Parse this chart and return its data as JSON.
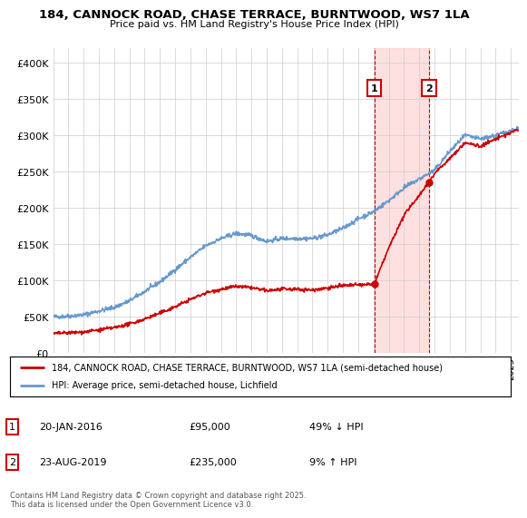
{
  "title": "184, CANNOCK ROAD, CHASE TERRACE, BURNTWOOD, WS7 1LA",
  "subtitle": "Price paid vs. HM Land Registry's House Price Index (HPI)",
  "ylabel_ticks": [
    "£0",
    "£50K",
    "£100K",
    "£150K",
    "£200K",
    "£250K",
    "£300K",
    "£350K",
    "£400K"
  ],
  "ytick_values": [
    0,
    50000,
    100000,
    150000,
    200000,
    250000,
    300000,
    350000,
    400000
  ],
  "ylim": [
    0,
    420000
  ],
  "xlim_start": 1995.0,
  "xlim_end": 2025.5,
  "transaction1": {
    "label": "1",
    "date": "20-JAN-2016",
    "price": 95000,
    "hpi_pct": "49% ↓ HPI",
    "x": 2016.05
  },
  "transaction2": {
    "label": "2",
    "date": "23-AUG-2019",
    "price": 235000,
    "hpi_pct": "9% ↑ HPI",
    "x": 2019.64
  },
  "legend_property": "184, CANNOCK ROAD, CHASE TERRACE, BURNTWOOD, WS7 1LA (semi-detached house)",
  "legend_hpi": "HPI: Average price, semi-detached house, Lichfield",
  "footer": "Contains HM Land Registry data © Crown copyright and database right 2025.\nThis data is licensed under the Open Government Licence v3.0.",
  "color_property": "#cc0000",
  "color_hpi": "#6699cc",
  "color_highlight": "#ffcccc",
  "background_color": "#ffffff",
  "grid_color": "#cccccc",
  "hpi_anchors_x": [
    1995,
    1996,
    1997,
    1998,
    1999,
    2000,
    2001,
    2002,
    2003,
    2004,
    2005,
    2006,
    2007,
    2008,
    2009,
    2010,
    2011,
    2012,
    2013,
    2014,
    2015,
    2016,
    2017,
    2018,
    2019,
    2020,
    2021,
    2022,
    2023,
    2024,
    2025.5
  ],
  "hpi_anchors_y": [
    50000,
    51000,
    53000,
    58000,
    63000,
    72000,
    85000,
    98000,
    115000,
    132000,
    148000,
    158000,
    165000,
    162000,
    154000,
    158000,
    158000,
    158000,
    163000,
    172000,
    185000,
    195000,
    210000,
    228000,
    240000,
    252000,
    278000,
    300000,
    295000,
    300000,
    310000
  ],
  "prop_anchors_x": [
    1995,
    1996,
    1997,
    1998,
    1999,
    2000,
    2001,
    2002,
    2003,
    2004,
    2005,
    2006,
    2007,
    2008,
    2009,
    2010,
    2011,
    2012,
    2013,
    2014,
    2015,
    2016.05,
    2017,
    2018,
    2019,
    2019.64,
    2020,
    2021,
    2022,
    2023,
    2024,
    2025.5
  ],
  "prop_anchors_y": [
    27000,
    28000,
    29000,
    32000,
    35000,
    40000,
    47000,
    55000,
    64000,
    74000,
    83000,
    88000,
    92000,
    90000,
    86000,
    88000,
    88000,
    87000,
    90000,
    93000,
    94000,
    95000,
    145000,
    190000,
    218000,
    235000,
    248000,
    268000,
    290000,
    285000,
    295000,
    308000
  ]
}
